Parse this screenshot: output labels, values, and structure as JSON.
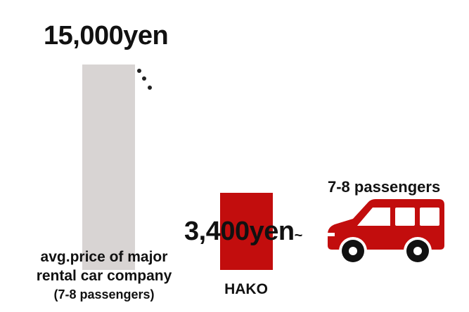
{
  "chart_data": {
    "type": "bar",
    "categories": [
      "avg.price of major rental car company (7-8 passengers)",
      "HAKO"
    ],
    "values": [
      15000,
      3400
    ],
    "value_labels": [
      "15,000yen",
      "3,400yen"
    ],
    "value_suffix": "~",
    "category_labels": [
      {
        "line1": "avg.price of major",
        "line2": "rental car company",
        "line3": "(7-8 passengers)"
      },
      {
        "line1": "HAKO"
      }
    ],
    "bar_colors": [
      "#d8d4d3",
      "#c20d0d"
    ],
    "axis_break": true,
    "grid": false
  },
  "illustration": {
    "icon": "car-icon",
    "caption": "7-8 passengers",
    "color": "#c20d0d"
  }
}
